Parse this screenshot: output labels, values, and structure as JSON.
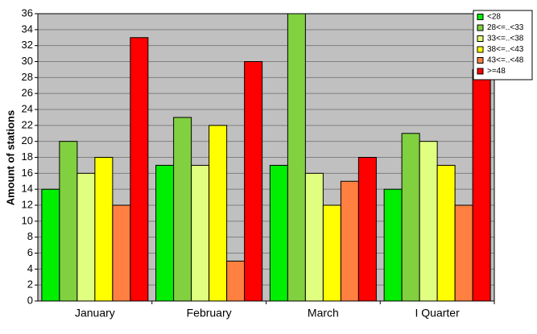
{
  "chart_data": {
    "type": "bar",
    "y_label": "Amount of stations",
    "categories": [
      "January",
      "February",
      "March",
      "I Quarter"
    ],
    "series": [
      {
        "name": "<28",
        "color": "#00ee00",
        "values": [
          14,
          17,
          17,
          14
        ]
      },
      {
        "name": "28<=..<33",
        "color": "#80d040",
        "values": [
          20,
          23,
          36,
          21
        ]
      },
      {
        "name": "33<=..<38",
        "color": "#e0ff80",
        "values": [
          16,
          17,
          16,
          20
        ]
      },
      {
        "name": "38<=..<43",
        "color": "#ffff00",
        "values": [
          18,
          22,
          12,
          17
        ]
      },
      {
        "name": "43<=..<48",
        "color": "#ff8040",
        "values": [
          12,
          5,
          15,
          12
        ]
      },
      {
        "name": ">=48",
        "color": "#ff0000",
        "values": [
          33,
          30,
          18,
          29
        ]
      }
    ],
    "ylim": [
      0,
      36
    ],
    "yticks": [
      0,
      2,
      4,
      6,
      8,
      10,
      12,
      14,
      16,
      18,
      20,
      22,
      24,
      26,
      28,
      30,
      32,
      34,
      36
    ],
    "grid": true,
    "legend": "top-right"
  }
}
